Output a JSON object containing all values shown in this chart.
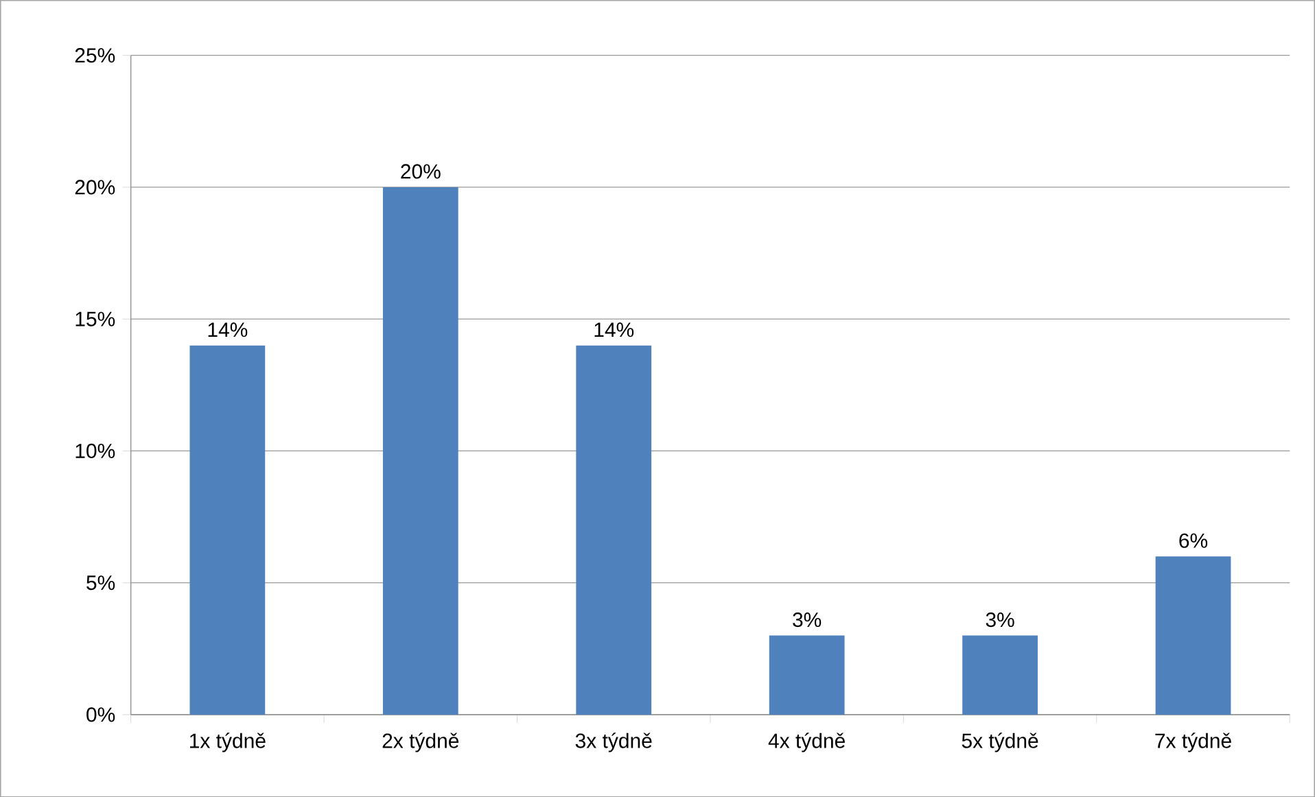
{
  "chart_data": {
    "type": "bar",
    "categories": [
      "1x týdně",
      "2x týdně",
      "3x týdně",
      "4x týdně",
      "5x týdně",
      "7x týdně"
    ],
    "values": [
      14,
      20,
      14,
      3,
      3,
      6
    ],
    "value_labels": [
      "14%",
      "20%",
      "14%",
      "3%",
      "3%",
      "6%"
    ],
    "color": "#4f81bd",
    "ylim": [
      0,
      25
    ],
    "yticks": [
      {
        "value": 0,
        "label": "0%"
      },
      {
        "value": 5,
        "label": "5%"
      },
      {
        "value": 10,
        "label": "10%"
      },
      {
        "value": 15,
        "label": "15%"
      },
      {
        "value": 20,
        "label": "20%"
      },
      {
        "value": 25,
        "label": "25%"
      }
    ],
    "grid": "y"
  }
}
